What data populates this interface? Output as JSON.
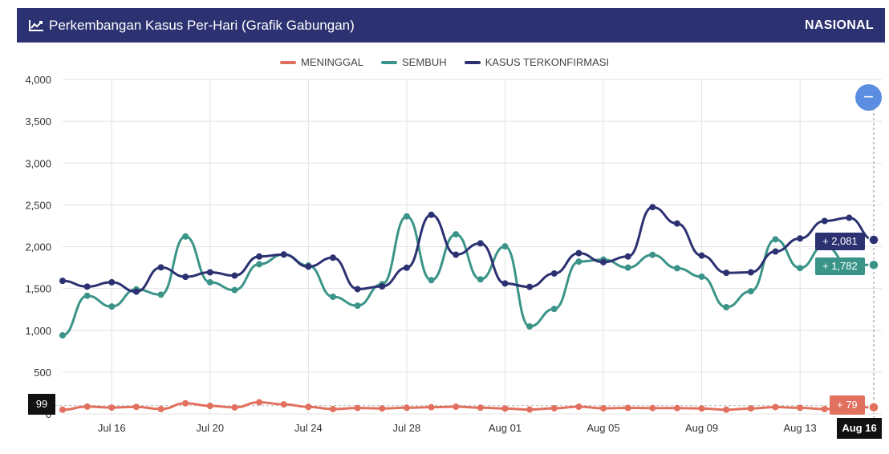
{
  "header": {
    "title": "Perkembangan Kasus Per-Hari (Grafik Gabungan)",
    "region": "NASIONAL",
    "icon": "line-chart-icon"
  },
  "zoom": {
    "label": "−"
  },
  "legend": [
    {
      "label": "MENINGGAL",
      "color": "#e2705e"
    },
    {
      "label": "SEMBUH",
      "color": "#3b9488"
    },
    {
      "label": "KASUS TERKONFIRMASI",
      "color": "#2b3171"
    }
  ],
  "tooltip": {
    "kasus": "+ 2,081",
    "sembuh": "+ 1,782",
    "meninggal": "+ 79",
    "crosshair_value": "99",
    "crosshair_date": "Aug 16"
  },
  "chart_data": {
    "type": "line",
    "x": [
      "Jul 14",
      "Jul 15",
      "Jul 16",
      "Jul 17",
      "Jul 18",
      "Jul 19",
      "Jul 20",
      "Jul 21",
      "Jul 22",
      "Jul 23",
      "Jul 24",
      "Jul 25",
      "Jul 26",
      "Jul 27",
      "Jul 28",
      "Jul 29",
      "Jul 30",
      "Jul 31",
      "Aug 01",
      "Aug 02",
      "Aug 03",
      "Aug 04",
      "Aug 05",
      "Aug 06",
      "Aug 07",
      "Aug 08",
      "Aug 09",
      "Aug 10",
      "Aug 11",
      "Aug 12",
      "Aug 13",
      "Aug 14",
      "Aug 15",
      "Aug 16"
    ],
    "x_tick_labels": [
      "Jul 16",
      "Jul 20",
      "Jul 24",
      "Jul 28",
      "Aug 01",
      "Aug 05",
      "Aug 09",
      "Aug 13",
      "Aug 16"
    ],
    "y_ticks": [
      "4,000",
      "3,500",
      "3,000",
      "2,500",
      "2,000",
      "1,500",
      "1,000",
      "500",
      "0"
    ],
    "ylim": [
      0,
      4000
    ],
    "grid": true,
    "legend_position": "top-center",
    "series": [
      {
        "name": "MENINGGAL",
        "color": "#e2705e",
        "values": [
          50,
          87,
          76,
          84,
          58,
          127,
          96,
          78,
          139,
          114,
          84,
          57,
          71,
          65,
          74,
          80,
          86,
          74,
          64,
          52,
          67,
          86,
          67,
          72,
          70,
          69,
          65,
          50,
          65,
          81,
          73,
          58,
          79,
          79
        ]
      },
      {
        "name": "SEMBUH",
        "color": "#3b9488",
        "values": [
          940,
          1413,
          1284,
          1489,
          1426,
          2122,
          1574,
          1481,
          1790,
          1906,
          1774,
          1400,
          1294,
          1552,
          2362,
          1599,
          2148,
          1609,
          2003,
          1046,
          1255,
          1821,
          1845,
          1749,
          1902,
          1742,
          1641,
          1276,
          1467,
          2088,
          1744,
          2015,
          1782,
          1782
        ]
      },
      {
        "name": "KASUS TERKONFIRMASI",
        "color": "#2b3171",
        "values": [
          1591,
          1522,
          1574,
          1462,
          1752,
          1639,
          1693,
          1654,
          1882,
          1906,
          1761,
          1868,
          1492,
          1525,
          1748,
          2381,
          1904,
          2040,
          1560,
          1519,
          1679,
          1922,
          1815,
          1882,
          2473,
          2277,
          1893,
          1687,
          1693,
          1942,
          2098,
          2307,
          2345,
          2081
        ]
      }
    ]
  }
}
